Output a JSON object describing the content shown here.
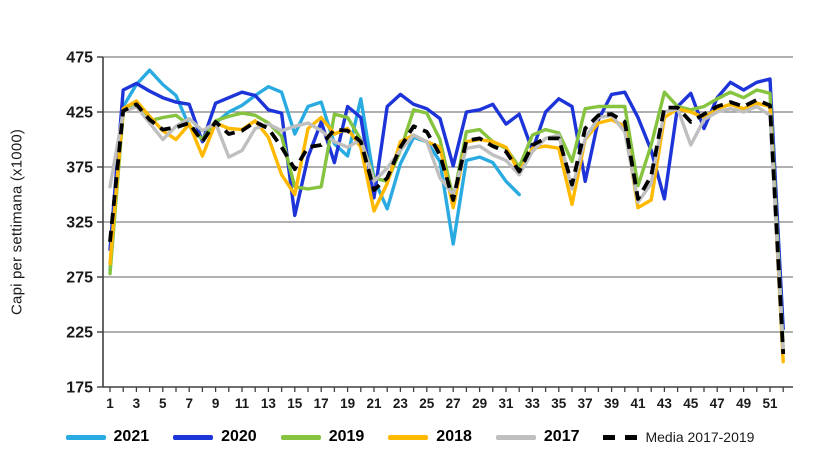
{
  "y_axis": {
    "title": "Capi per settimana (x1000)",
    "ticks": [
      475,
      425,
      375,
      325,
      275,
      225,
      175
    ]
  },
  "x_axis": {
    "tick_labels": [
      "1",
      "3",
      "5",
      "7",
      "9",
      "11",
      "13",
      "15",
      "17",
      "19",
      "21",
      "23",
      "25",
      "27",
      "29",
      "31",
      "33",
      "35",
      "37",
      "39",
      "41",
      "43",
      "45",
      "47",
      "49",
      "51"
    ]
  },
  "chart_data": {
    "type": "line",
    "title": "",
    "xlabel": "",
    "ylabel": "Capi per settimana (x1000)",
    "ylim": [
      175,
      475
    ],
    "xlim": [
      1,
      52
    ],
    "grid": "horizontal",
    "legend_position": "bottom",
    "x": [
      1,
      2,
      3,
      4,
      5,
      6,
      7,
      8,
      9,
      10,
      11,
      12,
      13,
      14,
      15,
      16,
      17,
      18,
      19,
      20,
      21,
      22,
      23,
      24,
      25,
      26,
      27,
      28,
      29,
      30,
      31,
      32,
      33,
      34,
      35,
      36,
      37,
      38,
      39,
      40,
      41,
      42,
      43,
      44,
      45,
      46,
      47,
      48,
      49,
      50,
      51,
      52
    ],
    "series": [
      {
        "name": "2021",
        "color": "#29ABE2",
        "style": "solid",
        "values": [
          281,
          430,
          450,
          463,
          450,
          440,
          412,
          400,
          415,
          425,
          431,
          440,
          448,
          443,
          405,
          430,
          434,
          396,
          385,
          437,
          364,
          337,
          378,
          402,
          398,
          380,
          305,
          381,
          384,
          379,
          362,
          350
        ]
      },
      {
        "name": "2020",
        "color": "#1D34D8",
        "style": "solid",
        "values": [
          300,
          445,
          451,
          444,
          438,
          434,
          432,
          398,
          433,
          438,
          443,
          440,
          427,
          424,
          331,
          384,
          416,
          379,
          430,
          420,
          347,
          430,
          441,
          432,
          428,
          419,
          376,
          425,
          427,
          432,
          414,
          423,
          390,
          425,
          437,
          430,
          362,
          418,
          441,
          443,
          420,
          390,
          346,
          430,
          442,
          410,
          438,
          452,
          445,
          452,
          455,
          228
        ]
      },
      {
        "name": "2019",
        "color": "#86C440",
        "style": "solid",
        "values": [
          278,
          425,
          432,
          417,
          420,
          422,
          413,
          400,
          417,
          421,
          424,
          422,
          415,
          403,
          357,
          355,
          357,
          423,
          420,
          400,
          365,
          362,
          390,
          427,
          424,
          400,
          346,
          407,
          409,
          398,
          392,
          375,
          404,
          409,
          406,
          380,
          428,
          430,
          430,
          430,
          358,
          395,
          443,
          430,
          427,
          430,
          437,
          443,
          438,
          445,
          442,
          210
        ]
      },
      {
        "name": "2018",
        "color": "#FFB900",
        "style": "solid",
        "values": [
          287,
          428,
          435,
          421,
          408,
          400,
          414,
          385,
          415,
          410,
          409,
          417,
          402,
          368,
          350,
          410,
          420,
          405,
          410,
          393,
          335,
          360,
          398,
          404,
          398,
          393,
          338,
          398,
          400,
          398,
          393,
          370,
          392,
          394,
          392,
          341,
          400,
          415,
          418,
          412,
          338,
          345,
          420,
          428,
          425,
          420,
          428,
          432,
          428,
          433,
          430,
          198
        ]
      },
      {
        "name": "2017",
        "color": "#BFBFBF",
        "style": "solid",
        "values": [
          357,
          425,
          430,
          415,
          400,
          412,
          419,
          408,
          415,
          384,
          390,
          410,
          414,
          408,
          412,
          415,
          408,
          398,
          393,
          400,
          362,
          374,
          390,
          404,
          398,
          365,
          350,
          392,
          394,
          386,
          381,
          368,
          389,
          401,
          404,
          355,
          401,
          420,
          422,
          407,
          343,
          360,
          425,
          428,
          395,
          418,
          425,
          428,
          425,
          430,
          422,
          208
        ]
      },
      {
        "name": "Media 2017-2019",
        "color": "#000000",
        "style": "dashed",
        "values": [
          307,
          426,
          432,
          418,
          409,
          411,
          415,
          398,
          416,
          405,
          408,
          416,
          410,
          393,
          373,
          393,
          395,
          409,
          408,
          398,
          354,
          365,
          393,
          412,
          407,
          386,
          345,
          399,
          401,
          394,
          389,
          371,
          395,
          401,
          401,
          359,
          410,
          422,
          423,
          416,
          346,
          367,
          429,
          429,
          416,
          423,
          430,
          434,
          430,
          436,
          431,
          205
        ]
      }
    ]
  }
}
